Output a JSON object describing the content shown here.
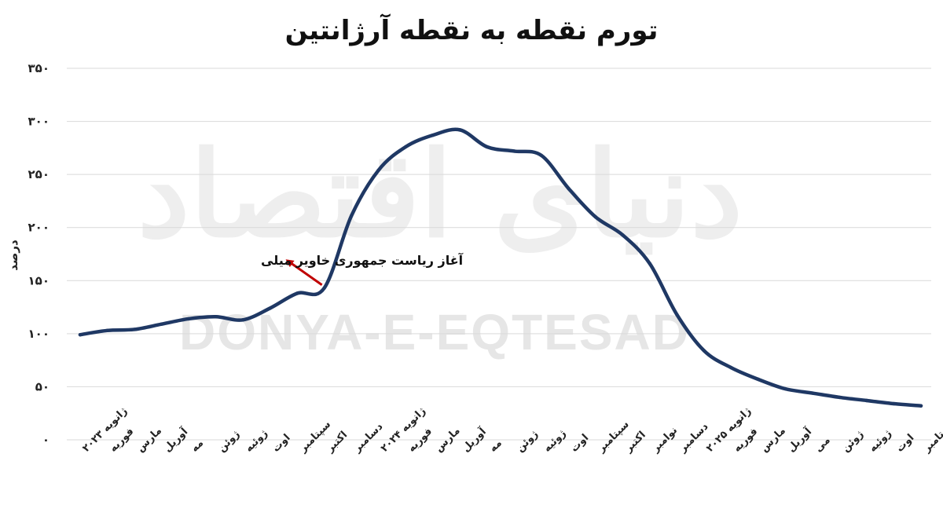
{
  "chart_data": {
    "type": "line",
    "title": "تورم نقطه به نقطه آرژانتین",
    "ylabel": "درصد",
    "xlabel": "",
    "ylim": [
      0,
      350
    ],
    "yticks": [
      "۰",
      "۵۰",
      "۱۰۰",
      "۱۵۰",
      "۲۰۰",
      "۲۵۰",
      "۳۰۰",
      "۳۵۰"
    ],
    "grid": true,
    "legend": "none",
    "color": "#1f3864",
    "categories": [
      "ژانویه ۲۰۲۳",
      "فوریه",
      "مارس",
      "آوریل",
      "مه",
      "ژوئن",
      "ژوئیه",
      "اوت",
      "سپتامبر",
      "اکتبر",
      "دسامبر",
      "ژانویه ۲۰۲۴",
      "فوریه",
      "مارس",
      "آوریل",
      "مه",
      "ژوئن",
      "ژوئیه",
      "اوت",
      "سپتامبر",
      "اکتبر",
      "نوامبر",
      "دسامبر",
      "ژانویه ۲۰۲۵",
      "فوریه",
      "مارس",
      "آوریل",
      "می",
      "ژوئن",
      "ژوئیه",
      "اوت",
      "سپتامبر"
    ],
    "values": [
      99,
      103,
      104,
      109,
      114,
      116,
      113,
      124,
      138,
      143,
      211,
      254,
      276,
      287,
      292,
      276,
      272,
      268,
      237,
      210,
      193,
      166,
      118,
      84,
      68,
      57,
      48,
      44,
      40,
      37,
      34,
      32
    ],
    "annotation": {
      "text": "آغاز ریاست جمهوری خاویر میلی",
      "at_category_index": 9,
      "arrow_color": "#c00000"
    },
    "watermark": {
      "latin": "DONYA-E-EQTESAD",
      "persian": "دنیای اقتصاد"
    }
  }
}
